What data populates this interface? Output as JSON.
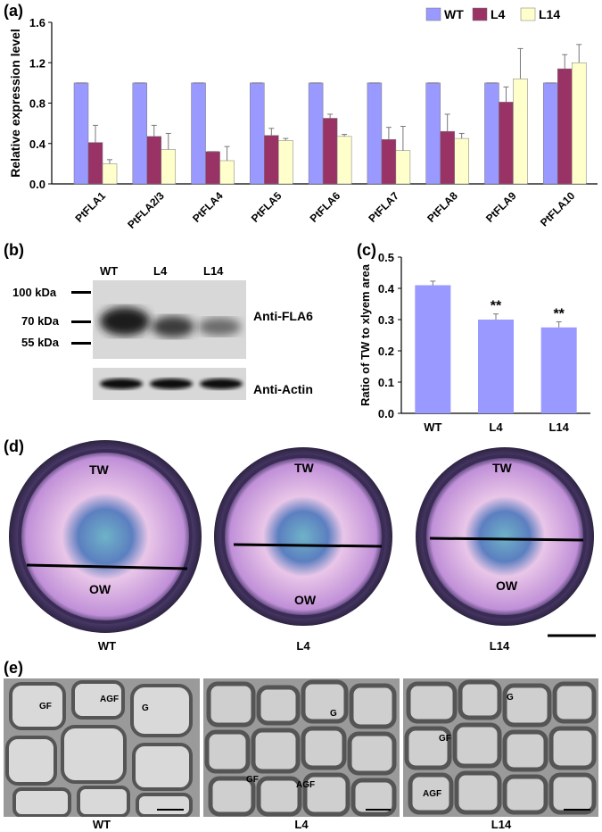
{
  "panels": {
    "a": "(a)",
    "b": "(b)",
    "c": "(c)",
    "d": "(d)",
    "e": "(e)"
  },
  "chart_data": [
    {
      "type": "bar",
      "panel": "a",
      "ylabel": "Relative expression level",
      "ylim": [
        0,
        1.6
      ],
      "yticks": [
        "0.0",
        "0.4",
        "0.8",
        "1.2",
        "1.6"
      ],
      "categories": [
        "PtFLA1",
        "PtFLA2/3",
        "PtFLA4",
        "PtFLA5",
        "PtFLA6",
        "PtFLA7",
        "PtFLA8",
        "PtFLA9",
        "PtFLA10"
      ],
      "series": [
        {
          "name": "WT",
          "color": "#9999ff",
          "values": [
            1.0,
            1.0,
            1.0,
            1.0,
            1.0,
            1.0,
            1.0,
            1.0,
            1.0
          ],
          "errors": [
            0,
            0,
            0,
            0,
            0,
            0,
            0,
            0,
            0
          ]
        },
        {
          "name": "L4",
          "color": "#993366",
          "values": [
            0.41,
            0.47,
            0.32,
            0.48,
            0.65,
            0.44,
            0.52,
            0.81,
            1.14
          ],
          "errors": [
            0.17,
            0.11,
            0.0,
            0.07,
            0.04,
            0.12,
            0.17,
            0.15,
            0.14
          ]
        },
        {
          "name": "L14",
          "color": "#ffffcc",
          "values": [
            0.2,
            0.34,
            0.23,
            0.43,
            0.47,
            0.33,
            0.45,
            1.04,
            1.2
          ],
          "errors": [
            0.04,
            0.16,
            0.14,
            0.02,
            0.02,
            0.24,
            0.05,
            0.3,
            0.18
          ]
        }
      ],
      "legend": "top-right",
      "grid": false
    },
    {
      "type": "bar",
      "panel": "c",
      "ylabel": "Ratio of TW to xlyem area",
      "ylim": [
        0,
        0.5
      ],
      "yticks": [
        "0.0",
        "0.1",
        "0.2",
        "0.3",
        "0.4",
        "0.5"
      ],
      "categories": [
        "WT",
        "L4",
        "L14"
      ],
      "series": [
        {
          "color": "#9999ff",
          "values": [
            0.41,
            0.3,
            0.275
          ],
          "errors": [
            0.013,
            0.018,
            0.018
          ]
        }
      ],
      "annotations": [
        "",
        "**",
        "**"
      ],
      "grid": false
    }
  ],
  "blot": {
    "lanes": [
      "WT",
      "L4",
      "L14"
    ],
    "markers": [
      "100 kDa",
      "70 kDa",
      "55 kDa"
    ],
    "labels": [
      "Anti-FLA6",
      "Anti-Actin"
    ]
  },
  "sections": {
    "captions": [
      "WT",
      "L4",
      "L14"
    ],
    "labels": {
      "tw": "TW",
      "ow": "OW"
    }
  },
  "micrographs": {
    "captions": [
      "WT",
      "L4",
      "L14"
    ],
    "labels": {
      "gf": "GF",
      "agf": "AGF",
      "g": "G"
    }
  }
}
